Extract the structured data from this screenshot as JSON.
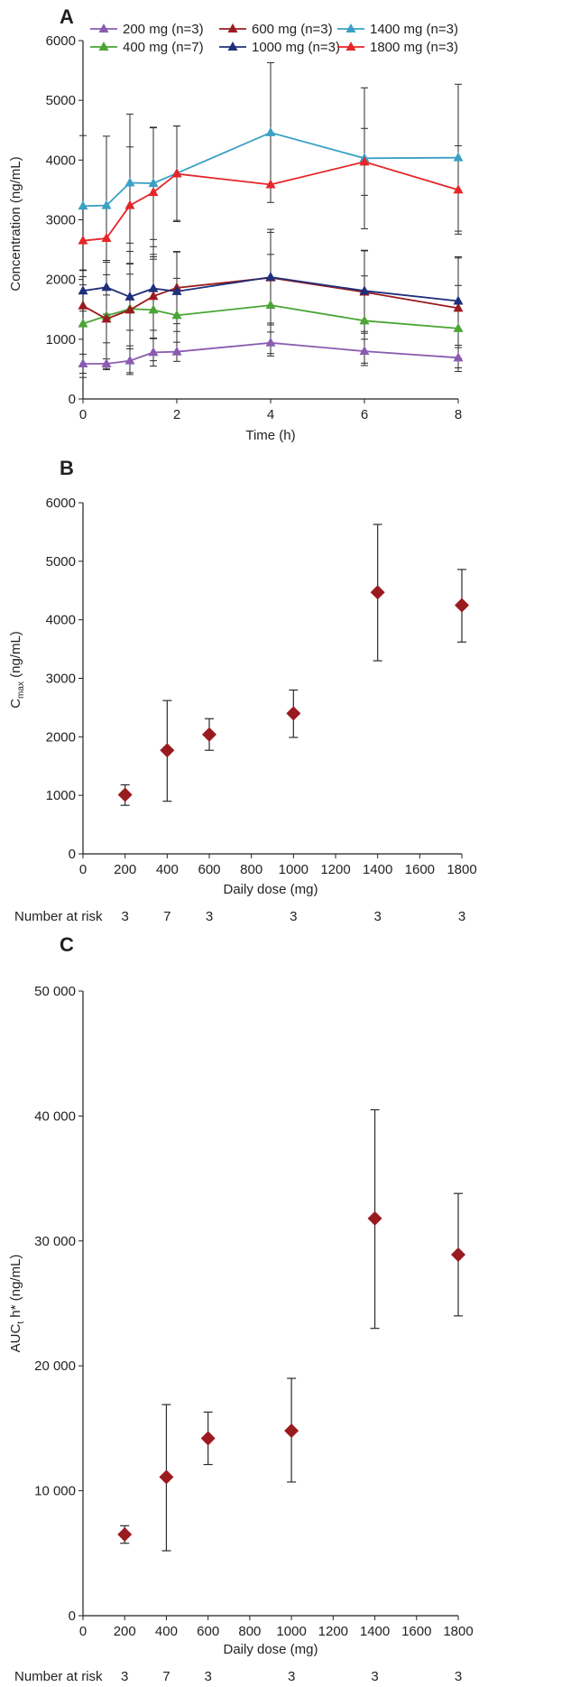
{
  "chart_data": [
    {
      "panel": "A",
      "type": "line",
      "xlabel": "Time (h)",
      "ylabel": "Concentration (ng/mL)",
      "xlim": [
        0,
        8
      ],
      "ylim": [
        0,
        6000
      ],
      "xticks": [
        "0",
        "2",
        "4",
        "6",
        "8"
      ],
      "yticks": [
        "0",
        "1000",
        "2000",
        "3000",
        "4000",
        "5000",
        "6000"
      ],
      "x": [
        0,
        0.5,
        1,
        1.5,
        2,
        4,
        6,
        8
      ],
      "legend": "top",
      "series": [
        {
          "name": "200 mg (n=3)",
          "color": "#8a5cb0",
          "values": [
            590,
            590,
            640,
            780,
            790,
            940,
            800,
            690
          ],
          "error": [
            160,
            80,
            200,
            230,
            160,
            180,
            200,
            170
          ]
        },
        {
          "name": "400 mg (n=7)",
          "color": "#4aa534",
          "values": [
            1260,
            1390,
            1510,
            1490,
            1400,
            1570,
            1310,
            1180
          ],
          "error": [
            900,
            900,
            1100,
            850,
            620,
            850,
            750,
            720
          ]
        },
        {
          "name": "600 mg (n=3)",
          "color": "#9a1b1f",
          "values": [
            1560,
            1340,
            1490,
            1720,
            1860,
            2030,
            1790,
            1520
          ],
          "error": [
            350,
            400,
            600,
            700,
            600,
            760,
            690,
            840
          ]
        },
        {
          "name": "1000 mg (n=3)",
          "color": "#1f2f7a",
          "values": [
            1810,
            1870,
            1710,
            1850,
            1800,
            2040,
            1810,
            1640
          ],
          "error": [
            340,
            450,
            560,
            700,
            670,
            800,
            680,
            740
          ]
        },
        {
          "name": "1400 mg (n=3)",
          "color": "#3aa0c4",
          "values": [
            3230,
            3240,
            3620,
            3610,
            3780,
            4460,
            4030,
            4040
          ],
          "error": [
            1180,
            1160,
            1150,
            940,
            790,
            1170,
            1180,
            1230
          ]
        },
        {
          "name": "1800 mg (n=3)",
          "color": "#e52528",
          "values": [
            2650,
            2690,
            3240,
            3460,
            3770,
            3590,
            3970,
            3500
          ],
          "error": [
            0,
            0,
            980,
            1080,
            800,
            0,
            560,
            740
          ]
        }
      ]
    },
    {
      "panel": "B",
      "type": "scatter",
      "xlabel": "Daily dose (mg)",
      "ylabel": "C",
      "ylabel_sub": "max",
      "ylabel_unit": " (ng/mL)",
      "xlim": [
        0,
        1800
      ],
      "ylim": [
        0,
        6000
      ],
      "xticks": [
        "0",
        "200",
        "400",
        "600",
        "800",
        "1000",
        "1200",
        "1400",
        "1600",
        "1800"
      ],
      "yticks": [
        "0",
        "1000",
        "2000",
        "3000",
        "4000",
        "5000",
        "6000"
      ],
      "color": "#9a1b1f",
      "points": [
        {
          "x": 200,
          "y": 1010,
          "low": 830,
          "high": 1180
        },
        {
          "x": 400,
          "y": 1770,
          "low": 900,
          "high": 2620
        },
        {
          "x": 600,
          "y": 2040,
          "low": 1770,
          "high": 2310
        },
        {
          "x": 1000,
          "y": 2400,
          "low": 1990,
          "high": 2800
        },
        {
          "x": 1400,
          "y": 4470,
          "low": 3300,
          "high": 5630
        },
        {
          "x": 1800,
          "y": 4250,
          "low": 3620,
          "high": 4860
        }
      ],
      "risk_label": "Number at risk",
      "risk_values": [
        "3",
        "7",
        "3",
        "3",
        "3",
        "3"
      ]
    },
    {
      "panel": "C",
      "type": "scatter",
      "xlabel": "Daily dose (mg)",
      "ylabel": "AUC",
      "ylabel_sub": "t",
      "ylabel_unit": " h* (ng/mL)",
      "xlim": [
        0,
        1800
      ],
      "ylim": [
        0,
        50000
      ],
      "xticks": [
        "0",
        "200",
        "400",
        "600",
        "800",
        "1000",
        "1200",
        "1400",
        "1600",
        "1800"
      ],
      "yticks": [
        "0",
        "10 000",
        "20 000",
        "30 000",
        "40 000",
        "50 000"
      ],
      "color": "#9a1b1f",
      "points": [
        {
          "x": 200,
          "y": 6500,
          "low": 5800,
          "high": 7200
        },
        {
          "x": 400,
          "y": 11100,
          "low": 5200,
          "high": 16900
        },
        {
          "x": 600,
          "y": 14200,
          "low": 12100,
          "high": 16300
        },
        {
          "x": 1000,
          "y": 14800,
          "low": 10700,
          "high": 19000
        },
        {
          "x": 1400,
          "y": 31800,
          "low": 23000,
          "high": 40500
        },
        {
          "x": 1800,
          "y": 28900,
          "low": 24000,
          "high": 33800
        }
      ],
      "risk_label": "Number at risk",
      "risk_values": [
        "3",
        "7",
        "3",
        "3",
        "3",
        "3"
      ]
    }
  ]
}
